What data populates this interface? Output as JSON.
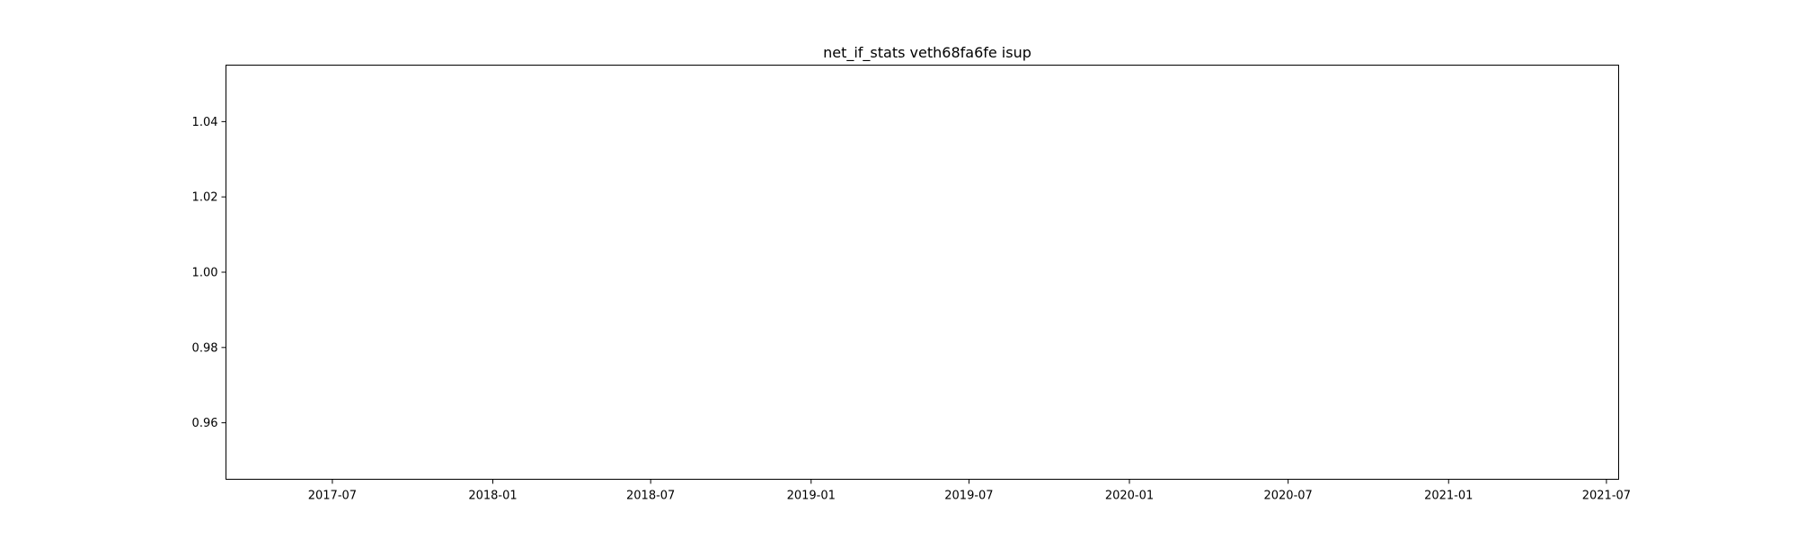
{
  "chart_data": {
    "type": "line",
    "title": "net_if_stats veth68fa6fe isup",
    "xlabel": "",
    "ylabel": "",
    "series": [],
    "xlim": [
      "2017-03-01",
      "2021-07-15"
    ],
    "ylim": [
      0.945,
      1.055
    ],
    "x_ticks": [
      {
        "value": "2017-07-01",
        "label": "2017-07"
      },
      {
        "value": "2018-01-01",
        "label": "2018-01"
      },
      {
        "value": "2018-07-01",
        "label": "2018-07"
      },
      {
        "value": "2019-01-01",
        "label": "2019-01"
      },
      {
        "value": "2019-07-01",
        "label": "2019-07"
      },
      {
        "value": "2020-01-01",
        "label": "2020-01"
      },
      {
        "value": "2020-07-01",
        "label": "2020-07"
      },
      {
        "value": "2021-01-01",
        "label": "2021-01"
      },
      {
        "value": "2021-07-01",
        "label": "2021-07"
      }
    ],
    "y_ticks": [
      {
        "value": 0.96,
        "label": "0.96"
      },
      {
        "value": 0.98,
        "label": "0.98"
      },
      {
        "value": 1.0,
        "label": "1.00"
      },
      {
        "value": 1.02,
        "label": "1.02"
      },
      {
        "value": 1.04,
        "label": "1.04"
      }
    ],
    "grid": false,
    "legend": "none",
    "colors": {
      "frame": "#000000",
      "background": "#ffffff"
    }
  }
}
